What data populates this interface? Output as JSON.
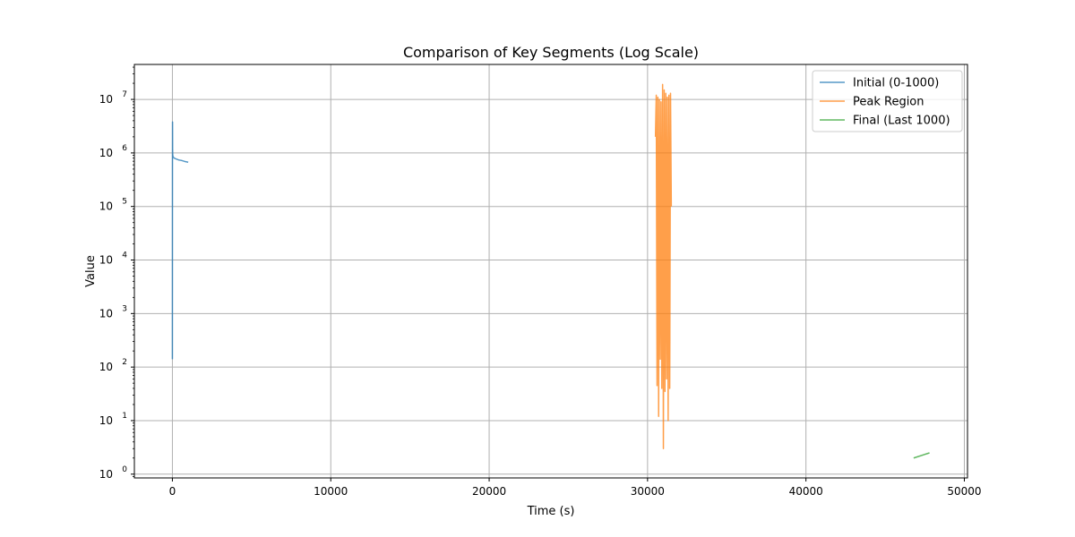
{
  "chart_data": {
    "type": "line",
    "title": "Comparison of Key Segments (Log Scale)",
    "xlabel": "Time (s)",
    "ylabel": "Value",
    "xlim": [
      -2400,
      50200
    ],
    "ylim": [
      0.85,
      45000000
    ],
    "yscale": "log",
    "grid": true,
    "legend_position": "top-right",
    "x_ticks": [
      {
        "value": 0,
        "label": "0"
      },
      {
        "value": 10000,
        "label": "10000"
      },
      {
        "value": 20000,
        "label": "20000"
      },
      {
        "value": 30000,
        "label": "30000"
      },
      {
        "value": 40000,
        "label": "40000"
      },
      {
        "value": 50000,
        "label": "50000"
      }
    ],
    "y_ticks": [
      {
        "value": 1,
        "base": "10",
        "exp": "0"
      },
      {
        "value": 10,
        "base": "10",
        "exp": "1"
      },
      {
        "value": 100,
        "base": "10",
        "exp": "2"
      },
      {
        "value": 1000,
        "base": "10",
        "exp": "3"
      },
      {
        "value": 10000,
        "base": "10",
        "exp": "4"
      },
      {
        "value": 100000,
        "base": "10",
        "exp": "5"
      },
      {
        "value": 1000000,
        "base": "10",
        "exp": "6"
      },
      {
        "value": 10000000,
        "base": "10",
        "exp": "7"
      }
    ],
    "series": [
      {
        "name": "Initial (0-1000)",
        "color": "#1f77b4",
        "opacity": 0.75,
        "x": [
          0,
          5,
          10,
          15,
          20,
          30,
          50,
          80,
          120,
          200,
          300,
          400,
          500,
          600,
          700,
          800,
          900,
          1000
        ],
        "y": [
          140,
          500000,
          3800000,
          1200000,
          950000,
          880000,
          850000,
          820000,
          800000,
          780000,
          760000,
          740000,
          730000,
          720000,
          705000,
          690000,
          680000,
          670000
        ]
      },
      {
        "name": "Peak Region",
        "color": "#ff7f0e",
        "opacity": 0.75,
        "x": [
          30500,
          30550,
          30600,
          30650,
          30700,
          30750,
          30800,
          30850,
          30900,
          30950,
          31000,
          31050,
          31100,
          31150,
          31200,
          31250,
          31300,
          31350,
          31400,
          31450,
          31500
        ],
        "y": [
          2000000,
          12000000,
          45,
          11000000,
          12,
          10000000,
          140,
          9000000,
          40,
          19000000,
          3,
          15000000,
          35,
          13000000,
          60,
          11000000,
          10,
          12000000,
          40,
          13000000,
          100000
        ]
      },
      {
        "name": "Final (Last 1000)",
        "color": "#2ca02c",
        "opacity": 0.75,
        "x": [
          46800,
          47800
        ],
        "y": [
          2.0,
          2.5
        ]
      }
    ]
  }
}
